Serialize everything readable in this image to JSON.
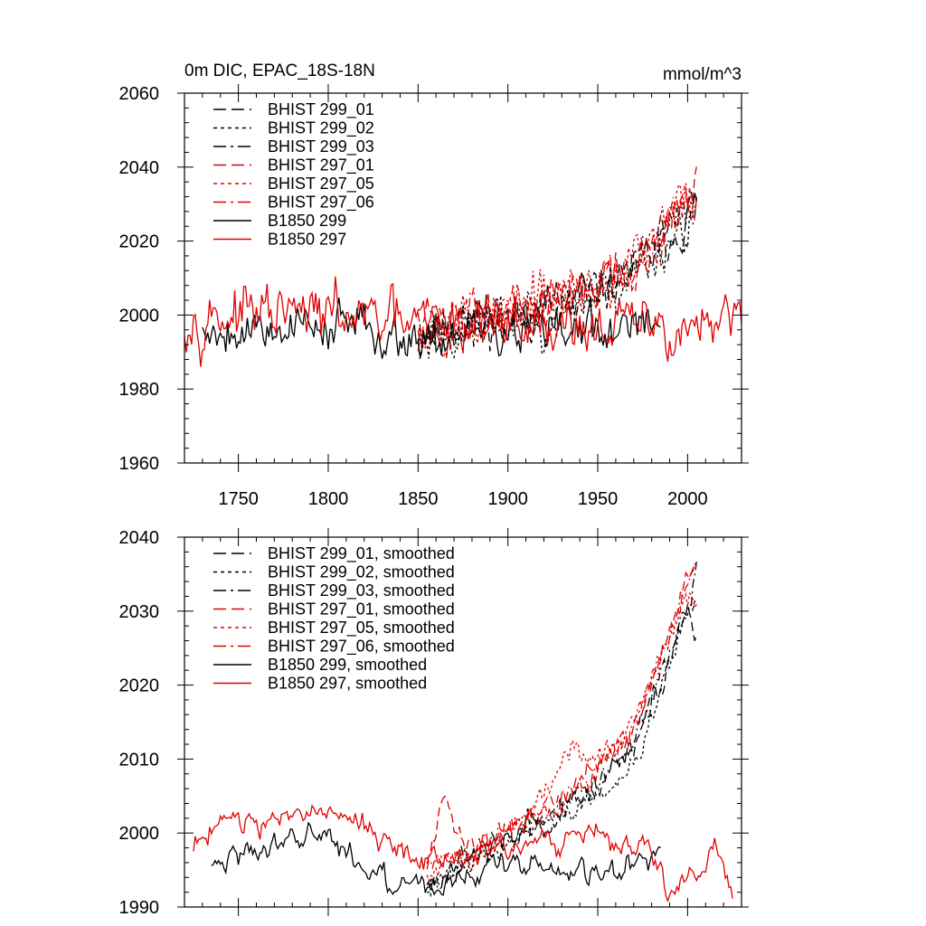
{
  "colors": {
    "black": "#000000",
    "red": "#e00000"
  },
  "header": {
    "title": "0m DIC, EPAC_18S-18N",
    "units": "mmol/m^3"
  },
  "chart_data": [
    {
      "type": "line",
      "title": "0m DIC, EPAC_18S-18N",
      "units": "mmol/m^3",
      "xlim": [
        1720,
        2030
      ],
      "ylim": [
        1960,
        2060
      ],
      "xticks": [
        1750,
        1800,
        1850,
        1900,
        1950,
        2000
      ],
      "xtick_labels": [
        "1750",
        "1800",
        "1850",
        "1900",
        "1950",
        "2000"
      ],
      "yticks": [
        1960,
        1980,
        2000,
        2020,
        2040,
        2060
      ],
      "ytick_labels": [
        "1960",
        "1980",
        "2000",
        "2020",
        "2040",
        "2060"
      ],
      "legend_position": "top-left",
      "series": [
        {
          "name": "BHIST 299_01",
          "color": "black",
          "dash": "dash",
          "x_start": 1850,
          "x_end": 2005,
          "step": 1,
          "trend": [
            [
              1850,
              1996
            ],
            [
              1900,
              1999
            ],
            [
              1950,
              2006
            ],
            [
              1975,
              2014
            ],
            [
              2005,
              2030
            ]
          ],
          "noise": 7,
          "seed": 11
        },
        {
          "name": "BHIST 299_02",
          "color": "black",
          "dash": "dot",
          "x_start": 1850,
          "x_end": 2005,
          "step": 1,
          "trend": [
            [
              1850,
              1995
            ],
            [
              1900,
              1998
            ],
            [
              1950,
              2005
            ],
            [
              1975,
              2013
            ],
            [
              2005,
              2029
            ]
          ],
          "noise": 8,
          "seed": 23
        },
        {
          "name": "BHIST 299_03",
          "color": "black",
          "dash": "dashdot",
          "x_start": 1850,
          "x_end": 2005,
          "step": 1,
          "trend": [
            [
              1850,
              1996
            ],
            [
              1900,
              1999
            ],
            [
              1950,
              2006
            ],
            [
              1975,
              2014
            ],
            [
              2005,
              2031
            ]
          ],
          "noise": 7,
          "seed": 37
        },
        {
          "name": "BHIST 297_01",
          "color": "red",
          "dash": "dash",
          "x_start": 1850,
          "x_end": 2005,
          "step": 1,
          "trend": [
            [
              1850,
              1997
            ],
            [
              1900,
              2001
            ],
            [
              1950,
              2008
            ],
            [
              1975,
              2016
            ],
            [
              2005,
              2035
            ]
          ],
          "noise": 7,
          "seed": 41
        },
        {
          "name": "BHIST 297_05",
          "color": "red",
          "dash": "dot",
          "x_start": 1850,
          "x_end": 2005,
          "step": 1,
          "trend": [
            [
              1850,
              1997
            ],
            [
              1900,
              2001
            ],
            [
              1950,
              2008
            ],
            [
              1975,
              2016
            ],
            [
              2005,
              2034
            ]
          ],
          "noise": 8,
          "seed": 53
        },
        {
          "name": "BHIST 297_06",
          "color": "red",
          "dash": "dashdot",
          "x_start": 1850,
          "x_end": 2005,
          "step": 1,
          "trend": [
            [
              1850,
              1997
            ],
            [
              1900,
              2001
            ],
            [
              1950,
              2008
            ],
            [
              1975,
              2016
            ],
            [
              2005,
              2035
            ]
          ],
          "noise": 7,
          "seed": 67
        },
        {
          "name": "B1850 299",
          "color": "black",
          "dash": "solid",
          "x_start": 1730,
          "x_end": 1985,
          "step": 1,
          "trend": [
            [
              1730,
              1996
            ],
            [
              1800,
              1998
            ],
            [
              1850,
              1994
            ],
            [
              1900,
              1996
            ],
            [
              1985,
              1995
            ]
          ],
          "noise": 7,
          "seed": 79
        },
        {
          "name": "B1850 297",
          "color": "red",
          "dash": "solid",
          "x_start": 1720,
          "x_end": 2030,
          "step": 1,
          "trend": [
            [
              1720,
              2000
            ],
            [
              1800,
              2000
            ],
            [
              1850,
              1997
            ],
            [
              1900,
              1998
            ],
            [
              2030,
              1996
            ]
          ],
          "noise": 8,
          "seed": 97
        }
      ]
    },
    {
      "type": "line",
      "xlim": [
        1720,
        2030
      ],
      "ylim": [
        1990,
        2040
      ],
      "xticks": [
        1750,
        1800,
        1850,
        1900,
        1950,
        2000
      ],
      "xtick_labels": [],
      "yticks": [
        1990,
        2000,
        2010,
        2020,
        2030,
        2040
      ],
      "ytick_labels": [
        "1990",
        "2000",
        "2010",
        "2020",
        "2030",
        "2040"
      ],
      "legend_position": "top-left",
      "series": [
        {
          "name": "BHIST 299_01, smoothed",
          "color": "black",
          "dash": "dash",
          "x_start": 1855,
          "x_end": 2005,
          "step": 1,
          "trend": [
            [
              1855,
              1993
            ],
            [
              1880,
              1997
            ],
            [
              1920,
              2002
            ],
            [
              1950,
              2006
            ],
            [
              1970,
              2011
            ],
            [
              1985,
              2020
            ],
            [
              2000,
              2030
            ],
            [
              2005,
              2027
            ]
          ],
          "noise": 1.8,
          "seed": 111
        },
        {
          "name": "BHIST 299_02, smoothed",
          "color": "black",
          "dash": "dot",
          "x_start": 1855,
          "x_end": 2005,
          "step": 1,
          "trend": [
            [
              1855,
              1993
            ],
            [
              1880,
              1996
            ],
            [
              1920,
              2001
            ],
            [
              1950,
              2005
            ],
            [
              1970,
              2009
            ],
            [
              1985,
              2019
            ],
            [
              2000,
              2030
            ],
            [
              2005,
              2031
            ]
          ],
          "noise": 1.8,
          "seed": 123
        },
        {
          "name": "BHIST 299_03, smoothed",
          "color": "black",
          "dash": "dashdot",
          "x_start": 1855,
          "x_end": 2005,
          "step": 1,
          "trend": [
            [
              1855,
              1993
            ],
            [
              1880,
              1997
            ],
            [
              1920,
              2002
            ],
            [
              1950,
              2007
            ],
            [
              1970,
              2012
            ],
            [
              1985,
              2021
            ],
            [
              2000,
              2031
            ],
            [
              2005,
              2036
            ]
          ],
          "noise": 1.8,
          "seed": 137
        },
        {
          "name": "BHIST 297_01, smoothed",
          "color": "red",
          "dash": "dash",
          "x_start": 1855,
          "x_end": 2005,
          "step": 1,
          "trend": [
            [
              1855,
              1997
            ],
            [
              1865,
              2005
            ],
            [
              1880,
              1998
            ],
            [
              1920,
              2003
            ],
            [
              1950,
              2009
            ],
            [
              1970,
              2014
            ],
            [
              1985,
              2024
            ],
            [
              2000,
              2035
            ],
            [
              2005,
              2037
            ]
          ],
          "noise": 1.8,
          "seed": 141
        },
        {
          "name": "BHIST 297_05, smoothed",
          "color": "red",
          "dash": "dot",
          "x_start": 1855,
          "x_end": 2005,
          "step": 1,
          "trend": [
            [
              1855,
              1995
            ],
            [
              1880,
              1997
            ],
            [
              1920,
              2004
            ],
            [
              1935,
              2011
            ],
            [
              1950,
              2010
            ],
            [
              1970,
              2015
            ],
            [
              1985,
              2024
            ],
            [
              2000,
              2032
            ],
            [
              2005,
              2031
            ]
          ],
          "noise": 1.8,
          "seed": 153
        },
        {
          "name": "BHIST 297_06, smoothed",
          "color": "red",
          "dash": "dashdot",
          "x_start": 1855,
          "x_end": 2005,
          "step": 1,
          "trend": [
            [
              1855,
              1996
            ],
            [
              1880,
              1998
            ],
            [
              1920,
              2003
            ],
            [
              1950,
              2008
            ],
            [
              1970,
              2014
            ],
            [
              1985,
              2024
            ],
            [
              2000,
              2034
            ],
            [
              2005,
              2037
            ]
          ],
          "noise": 1.8,
          "seed": 167
        },
        {
          "name": "B1850 299, smoothed",
          "color": "black",
          "dash": "solid",
          "x_start": 1735,
          "x_end": 1985,
          "step": 1,
          "trend": [
            [
              1735,
              1996
            ],
            [
              1760,
              1998
            ],
            [
              1790,
              2000
            ],
            [
              1810,
              1997
            ],
            [
              1830,
              1994
            ],
            [
              1850,
              1993
            ],
            [
              1860,
              1992.5
            ],
            [
              1900,
              1996
            ],
            [
              1950,
              1994
            ],
            [
              1985,
              1997
            ]
          ],
          "noise": 1.8,
          "seed": 179
        },
        {
          "name": "B1850 297, smoothed",
          "color": "red",
          "dash": "solid",
          "x_start": 1725,
          "x_end": 2025,
          "step": 1,
          "trend": [
            [
              1725,
              1998
            ],
            [
              1740,
              2002
            ],
            [
              1780,
              2002
            ],
            [
              1800,
              2003
            ],
            [
              1820,
              2001
            ],
            [
              1850,
              1996
            ],
            [
              1900,
              1998
            ],
            [
              1950,
              2000
            ],
            [
              1980,
              1997
            ],
            [
              1990,
              1992
            ],
            [
              2010,
              1996
            ],
            [
              2015,
              2001
            ],
            [
              2025,
              1991
            ]
          ],
          "noise": 1.8,
          "seed": 197
        }
      ]
    }
  ]
}
